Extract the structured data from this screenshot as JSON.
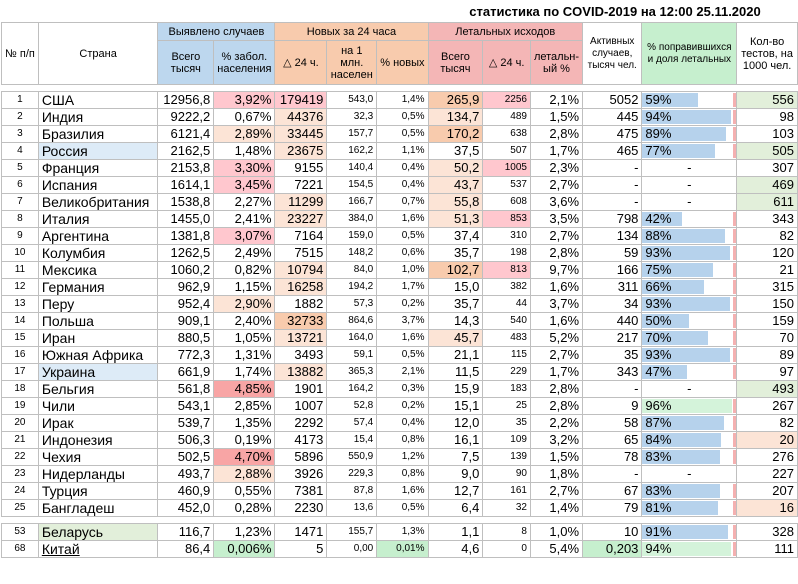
{
  "title": "статистика по COVID-2019 на 12:00 25.11.2020",
  "headers": {
    "no": "№ п/п",
    "country": "Страна",
    "detected": "Выявлено случаев",
    "detected_total": "Всего тысяч",
    "detected_pct": "% забол. населения",
    "new24": "Новых за 24 часа",
    "new24_delta": "△ 24 ч.",
    "new24_per_mln": "на 1 млн. населен",
    "new24_pct": "% новых",
    "deaths": "Летальных исходов",
    "deaths_total": "Всего тысяч",
    "deaths_delta": "△ 24 ч.",
    "deaths_pct": "летальн-ый %",
    "active": "Активных случаев, тысяч чел.",
    "recovered": "% поправившихся и доля летальных",
    "tests": "Кол-во тестов, на 1000 чел."
  },
  "colors": {
    "bar_blue": "#9dc3e6",
    "bar_red": "#f4b0b0",
    "highlight_green": "#c6efce",
    "highlight_orange": "#fce4d6",
    "highlight_red": "#f8cbad",
    "highlight_pink": "#ffc7ce",
    "highlight_yellow": "#ffeb9c",
    "highlight_blue": "#ddebf7"
  },
  "rows": [
    {
      "no": "1",
      "country": "США",
      "total": "12956,8",
      "pct": "3,92%",
      "d24": "179419",
      "mln": "543,0",
      "pnew": "1,4%",
      "dt": "265,9",
      "dd": "2256",
      "dp": "2,1%",
      "active": "5052",
      "rec": "59%",
      "rec_val": 0.59,
      "tests": "556",
      "c_country": "",
      "c_pct": "#ffc7ce",
      "c_d24": "#ffc7ce",
      "c_dt": "#f8cbad",
      "c_dd": "#ffc7ce",
      "c_tests": "#e2efda"
    },
    {
      "no": "2",
      "country": "Индия",
      "total": "9222,2",
      "pct": "0,67%",
      "d24": "44376",
      "mln": "32,3",
      "pnew": "0,5%",
      "dt": "134,7",
      "dd": "489",
      "dp": "1,5%",
      "active": "445",
      "rec": "94%",
      "rec_val": 0.94,
      "tests": "98",
      "c_country": "",
      "c_pct": "",
      "c_d24": "#fce4d6",
      "c_dt": "#fce4d6",
      "c_dd": "",
      "c_tests": ""
    },
    {
      "no": "3",
      "country": "Бразилия",
      "total": "6121,4",
      "pct": "2,89%",
      "d24": "33445",
      "mln": "157,7",
      "pnew": "0,5%",
      "dt": "170,2",
      "dd": "638",
      "dp": "2,8%",
      "active": "475",
      "rec": "89%",
      "rec_val": 0.89,
      "tests": "103",
      "c_country": "",
      "c_pct": "#fce4d6",
      "c_d24": "#fce4d6",
      "c_dt": "#f8cbad",
      "c_dd": "",
      "c_tests": ""
    },
    {
      "no": "4",
      "country": "Россия",
      "total": "2162,5",
      "pct": "1,48%",
      "d24": "23675",
      "mln": "162,2",
      "pnew": "1,1%",
      "dt": "37,5",
      "dd": "507",
      "dp": "1,7%",
      "active": "465",
      "rec": "77%",
      "rec_val": 0.77,
      "tests": "505",
      "c_country": "#ddebf7",
      "c_pct": "",
      "c_d24": "#fce4d6",
      "c_dt": "",
      "c_dd": "",
      "c_tests": "#e2efda"
    },
    {
      "no": "5",
      "country": "Франция",
      "total": "2153,8",
      "pct": "3,30%",
      "d24": "9155",
      "mln": "140,4",
      "pnew": "0,4%",
      "dt": "50,2",
      "dd": "1005",
      "dp": "2,3%",
      "active": "-",
      "rec": "-",
      "rec_val": 0,
      "tests": "307",
      "c_country": "",
      "c_pct": "#ffc7ce",
      "c_d24": "",
      "c_dt": "#fce4d6",
      "c_dd": "#ffc7ce",
      "c_tests": ""
    },
    {
      "no": "6",
      "country": "Испания",
      "total": "1614,1",
      "pct": "3,45%",
      "d24": "7221",
      "mln": "154,5",
      "pnew": "0,4%",
      "dt": "43,7",
      "dd": "537",
      "dp": "2,7%",
      "active": "-",
      "rec": "-",
      "rec_val": 0,
      "tests": "469",
      "c_country": "",
      "c_pct": "#ffc7ce",
      "c_d24": "",
      "c_dt": "#fce4d6",
      "c_dd": "",
      "c_tests": "#e2efda"
    },
    {
      "no": "7",
      "country": "Великобритания",
      "total": "1538,8",
      "pct": "2,27%",
      "d24": "11299",
      "mln": "166,7",
      "pnew": "0,7%",
      "dt": "55,8",
      "dd": "608",
      "dp": "3,6%",
      "active": "-",
      "rec": "-",
      "rec_val": 0,
      "tests": "611",
      "c_country": "",
      "c_pct": "",
      "c_d24": "#fce4d6",
      "c_dt": "#fce4d6",
      "c_dd": "",
      "c_tests": "#e2efda"
    },
    {
      "no": "8",
      "country": "Италия",
      "total": "1455,0",
      "pct": "2,41%",
      "d24": "23227",
      "mln": "384,0",
      "pnew": "1,6%",
      "dt": "51,3",
      "dd": "853",
      "dp": "3,5%",
      "active": "798",
      "rec": "42%",
      "rec_val": 0.42,
      "tests": "343",
      "c_country": "",
      "c_pct": "",
      "c_d24": "#fce4d6",
      "c_dt": "#fce4d6",
      "c_dd": "#ffc7ce",
      "c_tests": ""
    },
    {
      "no": "9",
      "country": "Аргентина",
      "total": "1381,8",
      "pct": "3,07%",
      "d24": "7164",
      "mln": "159,0",
      "pnew": "0,5%",
      "dt": "37,4",
      "dd": "310",
      "dp": "2,7%",
      "active": "134",
      "rec": "88%",
      "rec_val": 0.88,
      "tests": "82",
      "c_country": "",
      "c_pct": "#ffc7ce",
      "c_d24": "",
      "c_dt": "",
      "c_dd": "",
      "c_tests": ""
    },
    {
      "no": "10",
      "country": "Колумбия",
      "total": "1262,5",
      "pct": "2,49%",
      "d24": "7515",
      "mln": "148,2",
      "pnew": "0,6%",
      "dt": "35,7",
      "dd": "198",
      "dp": "2,8%",
      "active": "59",
      "rec": "93%",
      "rec_val": 0.93,
      "tests": "120",
      "c_country": "",
      "c_pct": "",
      "c_d24": "",
      "c_dt": "",
      "c_dd": "",
      "c_tests": ""
    },
    {
      "no": "11",
      "country": "Мексика",
      "total": "1060,2",
      "pct": "0,82%",
      "d24": "10794",
      "mln": "84,0",
      "pnew": "1,0%",
      "dt": "102,7",
      "dd": "813",
      "dp": "9,7%",
      "active": "166",
      "rec": "75%",
      "rec_val": 0.75,
      "tests": "21",
      "c_country": "",
      "c_pct": "",
      "c_d24": "#fce4d6",
      "c_dt": "#f8cbad",
      "c_dd": "#ffc7ce",
      "c_tests": ""
    },
    {
      "no": "12",
      "country": "Германия",
      "total": "962,9",
      "pct": "1,15%",
      "d24": "16258",
      "mln": "194,2",
      "pnew": "1,7%",
      "dt": "15,0",
      "dd": "382",
      "dp": "1,6%",
      "active": "311",
      "rec": "66%",
      "rec_val": 0.66,
      "tests": "315",
      "c_country": "",
      "c_pct": "",
      "c_d24": "#fce4d6",
      "c_dt": "",
      "c_dd": "",
      "c_tests": ""
    },
    {
      "no": "13",
      "country": "Перу",
      "total": "952,4",
      "pct": "2,90%",
      "d24": "1882",
      "mln": "57,3",
      "pnew": "0,2%",
      "dt": "35,7",
      "dd": "44",
      "dp": "3,7%",
      "active": "34",
      "rec": "93%",
      "rec_val": 0.93,
      "tests": "150",
      "c_country": "",
      "c_pct": "#fce4d6",
      "c_d24": "",
      "c_dt": "",
      "c_dd": "",
      "c_tests": ""
    },
    {
      "no": "14",
      "country": "Польша",
      "total": "909,1",
      "pct": "2,40%",
      "d24": "32733",
      "mln": "864,6",
      "pnew": "3,7%",
      "dt": "14,3",
      "dd": "540",
      "dp": "1,6%",
      "active": "440",
      "rec": "50%",
      "rec_val": 0.5,
      "tests": "159",
      "c_country": "",
      "c_pct": "",
      "c_d24": "#f8cbad",
      "c_dt": "",
      "c_dd": "",
      "c_tests": ""
    },
    {
      "no": "15",
      "country": "Иран",
      "total": "880,5",
      "pct": "1,05%",
      "d24": "13721",
      "mln": "164,0",
      "pnew": "1,6%",
      "dt": "45,7",
      "dd": "483",
      "dp": "5,2%",
      "active": "217",
      "rec": "70%",
      "rec_val": 0.7,
      "tests": "70",
      "c_country": "",
      "c_pct": "",
      "c_d24": "#fce4d6",
      "c_dt": "#fce4d6",
      "c_dd": "",
      "c_tests": ""
    },
    {
      "no": "16",
      "country": "Южная Африка",
      "total": "772,3",
      "pct": "1,31%",
      "d24": "3493",
      "mln": "59,1",
      "pnew": "0,5%",
      "dt": "21,1",
      "dd": "115",
      "dp": "2,7%",
      "active": "35",
      "rec": "93%",
      "rec_val": 0.93,
      "tests": "89",
      "c_country": "",
      "c_pct": "",
      "c_d24": "",
      "c_dt": "",
      "c_dd": "",
      "c_tests": ""
    },
    {
      "no": "17",
      "country": "Украина",
      "total": "661,9",
      "pct": "1,74%",
      "d24": "13882",
      "mln": "365,3",
      "pnew": "2,1%",
      "dt": "11,5",
      "dd": "229",
      "dp": "1,7%",
      "active": "343",
      "rec": "47%",
      "rec_val": 0.47,
      "tests": "97",
      "c_country": "#ddebf7",
      "c_pct": "",
      "c_d24": "#fce4d6",
      "c_dt": "",
      "c_dd": "",
      "c_tests": ""
    },
    {
      "no": "18",
      "country": "Бельгия",
      "total": "561,8",
      "pct": "4,85%",
      "d24": "1901",
      "mln": "164,2",
      "pnew": "0,3%",
      "dt": "15,9",
      "dd": "183",
      "dp": "2,8%",
      "active": "-",
      "rec": "-",
      "rec_val": 0,
      "tests": "493",
      "c_country": "",
      "c_pct": "#f8a5a5",
      "c_d24": "",
      "c_dt": "",
      "c_dd": "",
      "c_tests": "#e2efda"
    },
    {
      "no": "19",
      "country": "Чили",
      "total": "543,1",
      "pct": "2,85%",
      "d24": "1007",
      "mln": "52,8",
      "pnew": "0,2%",
      "dt": "15,1",
      "dd": "25",
      "dp": "2,8%",
      "active": "9",
      "rec": "96%",
      "rec_val": 0.96,
      "tests": "267",
      "c_country": "",
      "c_pct": "",
      "c_d24": "",
      "c_dt": "",
      "c_dd": "",
      "c_tests": "",
      "rec_green": true
    },
    {
      "no": "20",
      "country": "Ирак",
      "total": "539,7",
      "pct": "1,35%",
      "d24": "2292",
      "mln": "57,4",
      "pnew": "0,4%",
      "dt": "12,0",
      "dd": "35",
      "dp": "2,2%",
      "active": "58",
      "rec": "87%",
      "rec_val": 0.87,
      "tests": "82",
      "c_country": "",
      "c_pct": "",
      "c_d24": "",
      "c_dt": "",
      "c_dd": "",
      "c_tests": ""
    },
    {
      "no": "21",
      "country": "Индонезия",
      "total": "506,3",
      "pct": "0,19%",
      "d24": "4173",
      "mln": "15,4",
      "pnew": "0,8%",
      "dt": "16,1",
      "dd": "109",
      "dp": "3,2%",
      "active": "65",
      "rec": "84%",
      "rec_val": 0.84,
      "tests": "20",
      "c_country": "",
      "c_pct": "",
      "c_d24": "",
      "c_dt": "",
      "c_dd": "",
      "c_tests": "#fce4d6"
    },
    {
      "no": "22",
      "country": "Чехия",
      "total": "502,5",
      "pct": "4,70%",
      "d24": "5896",
      "mln": "550,9",
      "pnew": "1,2%",
      "dt": "7,5",
      "dd": "139",
      "dp": "1,5%",
      "active": "78",
      "rec": "83%",
      "rec_val": 0.83,
      "tests": "276",
      "c_country": "",
      "c_pct": "#f8a5a5",
      "c_d24": "",
      "c_dt": "",
      "c_dd": "",
      "c_tests": ""
    },
    {
      "no": "23",
      "country": "Нидерланды",
      "total": "493,7",
      "pct": "2,88%",
      "d24": "3926",
      "mln": "229,3",
      "pnew": "0,8%",
      "dt": "9,0",
      "dd": "90",
      "dp": "1,8%",
      "active": "-",
      "rec": "-",
      "rec_val": 0,
      "tests": "227",
      "c_country": "",
      "c_pct": "#fce4d6",
      "c_d24": "",
      "c_dt": "",
      "c_dd": "",
      "c_tests": ""
    },
    {
      "no": "24",
      "country": "Турция",
      "total": "460,9",
      "pct": "0,55%",
      "d24": "7381",
      "mln": "87,8",
      "pnew": "1,6%",
      "dt": "12,7",
      "dd": "161",
      "dp": "2,7%",
      "active": "67",
      "rec": "83%",
      "rec_val": 0.83,
      "tests": "207",
      "c_country": "",
      "c_pct": "",
      "c_d24": "",
      "c_dt": "",
      "c_dd": "",
      "c_tests": ""
    },
    {
      "no": "25",
      "country": "Бангладеш",
      "total": "452,0",
      "pct": "0,28%",
      "d24": "2230",
      "mln": "13,6",
      "pnew": "0,5%",
      "dt": "6,4",
      "dd": "32",
      "dp": "1,4%",
      "active": "79",
      "rec": "81%",
      "rec_val": 0.81,
      "tests": "16",
      "c_country": "",
      "c_pct": "",
      "c_d24": "",
      "c_dt": "",
      "c_dd": "",
      "c_tests": "#fce4d6"
    }
  ],
  "extra_rows": [
    {
      "no": "53",
      "country": "Беларусь",
      "total": "116,7",
      "pct": "1,23%",
      "d24": "1471",
      "mln": "155,7",
      "pnew": "1,3%",
      "dt": "1,1",
      "dd": "8",
      "dp": "1,0%",
      "active": "10",
      "rec": "91%",
      "rec_val": 0.91,
      "tests": "328",
      "c_country": "#e2efda",
      "c_pct": "",
      "c_d24": "",
      "c_dt": "",
      "c_dd": "",
      "c_tests": ""
    },
    {
      "no": "68",
      "country": "Китай",
      "total": "86,4",
      "pct": "0,006%",
      "d24": "5",
      "mln": "0,00",
      "pnew": "0,01%",
      "dt": "4,6",
      "dd": "0",
      "dp": "5,4%",
      "active": "0,203",
      "rec": "94%",
      "rec_val": 0.94,
      "tests": "111",
      "c_country": "",
      "c_pct": "#c6efce",
      "c_d24": "",
      "c_dt": "",
      "c_dd": "",
      "c_tests": "",
      "c_pnew": "#c6efce",
      "c_active": "#c6efce",
      "rec_green": true,
      "underline": true
    }
  ]
}
